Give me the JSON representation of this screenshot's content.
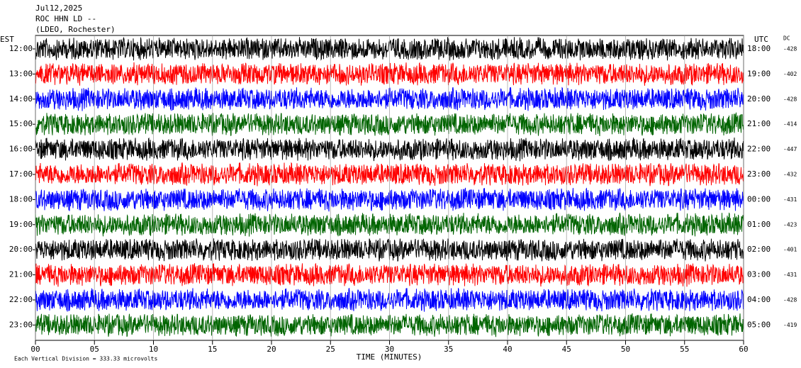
{
  "chart_data": {
    "type": "helicorder",
    "header": [
      "Jul12,2025",
      "ROC HHN LD --",
      "(LDEO, Rochester)"
    ],
    "left_axis_title": "EST",
    "right_axis_title": "UTC",
    "dc_title": "DC",
    "rows": [
      {
        "est": "12:00",
        "utc": "18:00",
        "dc": -428,
        "color": "#000000"
      },
      {
        "est": "13:00",
        "utc": "19:00",
        "dc": -402,
        "color": "#ff0000"
      },
      {
        "est": "14:00",
        "utc": "20:00",
        "dc": -428,
        "color": "#0000ff"
      },
      {
        "est": "15:00",
        "utc": "21:00",
        "dc": -414,
        "color": "#006400"
      },
      {
        "est": "16:00",
        "utc": "22:00",
        "dc": -447,
        "color": "#000000"
      },
      {
        "est": "17:00",
        "utc": "23:00",
        "dc": -432,
        "color": "#ff0000"
      },
      {
        "est": "18:00",
        "utc": "00:00",
        "dc": -431,
        "color": "#0000ff"
      },
      {
        "est": "19:00",
        "utc": "01:00",
        "dc": -423,
        "color": "#006400"
      },
      {
        "est": "20:00",
        "utc": "02:00",
        "dc": -401,
        "color": "#000000"
      },
      {
        "est": "21:00",
        "utc": "03:00",
        "dc": -431,
        "color": "#ff0000"
      },
      {
        "est": "22:00",
        "utc": "04:00",
        "dc": -428,
        "color": "#0000ff"
      },
      {
        "est": "23:00",
        "utc": "05:00",
        "dc": -419,
        "color": "#006400"
      }
    ],
    "xlabel": "TIME (MINUTES)",
    "xlim": [
      0,
      60
    ],
    "xticks": [
      {
        "value": 0,
        "label": "00"
      },
      {
        "value": 5,
        "label": "05"
      },
      10,
      15,
      20,
      25,
      30,
      35,
      40,
      45,
      50,
      55,
      60
    ],
    "grid": true,
    "footer": "Each Vertical Division =  333.33 microvolts"
  }
}
